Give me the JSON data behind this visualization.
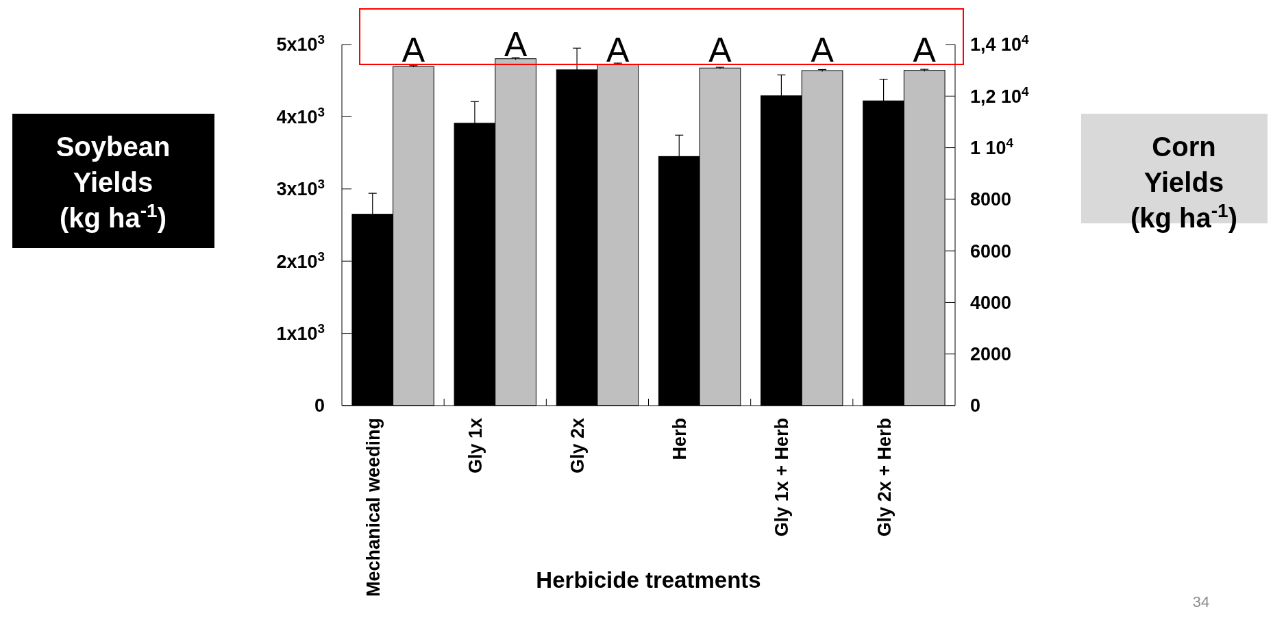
{
  "chart_data": {
    "type": "bar",
    "categories": [
      "Mechanical weeding",
      "Gly 1x",
      "Gly 2x",
      "Herb",
      "Gly 1x + Herb",
      "Gly 2x + Herb"
    ],
    "xlabel": "Herbicide treatments",
    "ylabel": "Soybean Yields (kg ha$^{-1}$)",
    "y2label": "Corn Yields (kg ha$^{-1}$)",
    "ylim": [
      0,
      5000
    ],
    "yticks": [
      {
        "value": 0,
        "label": "0"
      },
      {
        "value": 1000,
        "label": "1x10$^{3}$"
      },
      {
        "value": 2000,
        "label": "2x10$^{3}$"
      },
      {
        "value": 3000,
        "label": "3x10$^{3}$"
      },
      {
        "value": 4000,
        "label": "4x10$^{3}$"
      },
      {
        "value": 5000,
        "label": "5x10$^{3}$"
      }
    ],
    "y2lim": [
      0,
      14000
    ],
    "y2ticks": [
      0,
      2000,
      4000,
      6000,
      8000,
      {
        "value": 10000,
        "label": "1 10$^{4}$"
      },
      {
        "value": 12000,
        "label": "1,2 10$^{4}$"
      },
      {
        "value": 14000,
        "label": "1,4 10$^{4}$"
      }
    ],
    "series": [
      {
        "color": "#000000",
        "values": [
          2650,
          3910,
          4650,
          3450,
          4290,
          4220
        ],
        "errors": [
          290,
          300,
          300,
          295,
          290,
          300
        ]
      },
      {
        "color": "#bfbfbf",
        "axis": "y2",
        "values": [
          13150,
          13450,
          13240,
          13090,
          12990,
          13000
        ],
        "errors": [
          30,
          40,
          40,
          30,
          40,
          40
        ]
      }
    ],
    "annotations": [
      "A",
      "A",
      "A",
      "A",
      "A",
      "A",
      "34"
    ]
  }
}
